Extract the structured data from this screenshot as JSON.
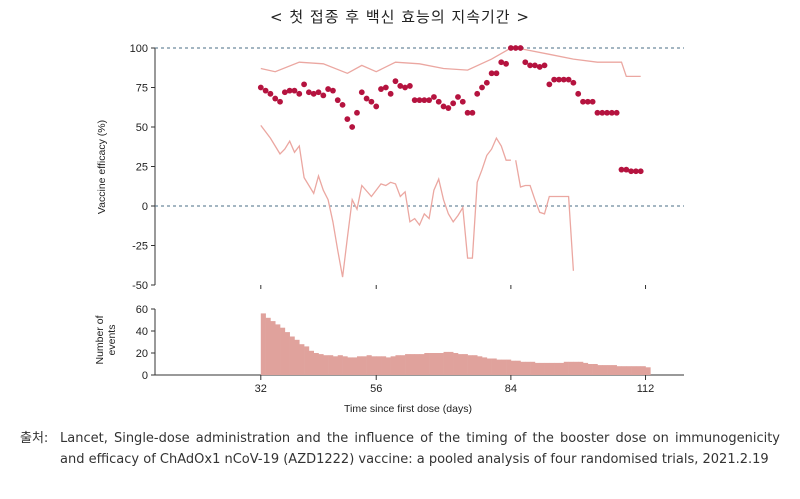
{
  "title": "< 첫 접종 후 백신 효능의 지속기간 >",
  "source": {
    "label": "출처:",
    "text": "Lancet, Single-dose administration and the influence of the timing of the booster dose on immunogenicity and efficacy of ChAdOx1 nCoV-19 (AZD1222) vaccine: a pooled analysis of four randomised trials, 2021.2.19"
  },
  "chart_data": [
    {
      "type": "scatter",
      "ylabel": "Vaccine efficacy (%)",
      "xlim": [
        10,
        120
      ],
      "ylim": [
        -50,
        100
      ],
      "yticks": [
        100,
        75,
        50,
        25,
        0,
        -25,
        -50
      ],
      "reference_lines": [
        100,
        0
      ],
      "grid": false,
      "series": [
        {
          "points": [
            [
              32,
              75
            ],
            [
              33,
              73
            ],
            [
              34,
              71
            ],
            [
              35,
              68
            ],
            [
              36,
              66
            ],
            [
              37,
              72
            ],
            [
              38,
              73
            ],
            [
              39,
              73
            ],
            [
              40,
              71
            ],
            [
              41,
              77
            ],
            [
              42,
              72
            ],
            [
              43,
              71
            ],
            [
              44,
              72
            ],
            [
              45,
              70
            ],
            [
              46,
              74
            ],
            [
              47,
              73
            ],
            [
              48,
              67
            ],
            [
              49,
              64
            ],
            [
              50,
              55
            ],
            [
              51,
              50
            ],
            [
              52,
              59
            ],
            [
              53,
              72
            ],
            [
              54,
              68
            ],
            [
              55,
              66
            ],
            [
              56,
              63
            ],
            [
              57,
              74
            ],
            [
              58,
              75
            ],
            [
              59,
              71
            ],
            [
              60,
              79
            ],
            [
              61,
              76
            ],
            [
              62,
              75
            ],
            [
              63,
              76
            ],
            [
              64,
              67
            ],
            [
              65,
              67
            ],
            [
              66,
              67
            ],
            [
              67,
              67
            ],
            [
              68,
              69
            ],
            [
              69,
              66
            ],
            [
              70,
              63
            ],
            [
              71,
              62
            ],
            [
              72,
              65
            ],
            [
              73,
              69
            ],
            [
              74,
              66
            ],
            [
              75,
              59
            ],
            [
              76,
              59
            ],
            [
              77,
              71
            ],
            [
              78,
              75
            ],
            [
              79,
              78
            ],
            [
              80,
              84
            ],
            [
              81,
              84
            ],
            [
              82,
              91
            ],
            [
              83,
              90
            ],
            [
              84,
              100
            ],
            [
              85,
              100
            ],
            [
              86,
              100
            ],
            [
              87,
              91
            ],
            [
              88,
              89
            ],
            [
              89,
              89
            ],
            [
              90,
              88
            ],
            [
              91,
              89
            ],
            [
              92,
              77
            ],
            [
              93,
              80
            ],
            [
              94,
              80
            ],
            [
              95,
              80
            ],
            [
              96,
              80
            ],
            [
              97,
              78
            ],
            [
              98,
              71
            ],
            [
              99,
              66
            ],
            [
              100,
              66
            ],
            [
              101,
              66
            ],
            [
              102,
              59
            ],
            [
              103,
              59
            ],
            [
              104,
              59
            ],
            [
              105,
              59
            ],
            [
              106,
              59
            ],
            [
              107,
              23
            ],
            [
              108,
              23
            ],
            [
              109,
              22
            ],
            [
              110,
              22
            ],
            [
              111,
              22
            ]
          ]
        },
        {
          "name": "upper CI",
          "points": [
            [
              32,
              87
            ],
            [
              35,
              85
            ],
            [
              40,
              91
            ],
            [
              45,
              90
            ],
            [
              50,
              84
            ],
            [
              53,
              89
            ],
            [
              56,
              85
            ],
            [
              60,
              91
            ],
            [
              65,
              90
            ],
            [
              70,
              87
            ],
            [
              75,
              86
            ],
            [
              80,
              93
            ],
            [
              84,
              100
            ],
            [
              87,
              99
            ],
            [
              92,
              96
            ],
            [
              97,
              93
            ],
            [
              102,
              91
            ],
            [
              107,
              91
            ],
            [
              108,
              82
            ],
            [
              111,
              82
            ]
          ]
        },
        {
          "name": "lower CI",
          "points": [
            [
              32,
              51
            ],
            [
              34,
              43
            ],
            [
              36,
              33
            ],
            [
              37,
              36
            ],
            [
              38,
              41
            ],
            [
              39,
              34
            ],
            [
              40,
              38
            ],
            [
              41,
              18
            ],
            [
              43,
              8
            ],
            [
              44,
              19
            ],
            [
              45,
              10
            ],
            [
              46,
              4
            ],
            [
              47,
              -10
            ],
            [
              48,
              -28
            ],
            [
              49,
              -45
            ],
            [
              50,
              -20
            ],
            [
              51,
              4
            ],
            [
              52,
              -2
            ],
            [
              53,
              13
            ],
            [
              55,
              6
            ],
            [
              57,
              14
            ],
            [
              58,
              13
            ],
            [
              59,
              15
            ],
            [
              60,
              14
            ],
            [
              61,
              6
            ],
            [
              62,
              9
            ],
            [
              63,
              -10
            ],
            [
              64,
              -8
            ],
            [
              65,
              -12
            ],
            [
              66,
              -5
            ],
            [
              67,
              -8
            ],
            [
              68,
              10
            ],
            [
              69,
              17
            ],
            [
              70,
              4
            ],
            [
              71,
              -5
            ],
            [
              72,
              -10
            ],
            [
              73,
              -6
            ],
            [
              74,
              -1
            ],
            [
              75,
              -33
            ],
            [
              76,
              -33
            ],
            [
              77,
              15
            ],
            [
              78,
              23
            ],
            [
              79,
              32
            ],
            [
              80,
              36
            ],
            [
              81,
              43
            ],
            [
              82,
              38
            ],
            [
              83,
              29
            ],
            [
              84,
              29
            ],
            null,
            [
              85,
              29
            ],
            [
              86,
              12
            ],
            [
              87,
              13
            ],
            [
              88,
              13
            ],
            [
              89,
              4
            ],
            [
              90,
              -4
            ],
            [
              91,
              -5
            ],
            [
              92,
              6
            ],
            [
              93,
              6
            ],
            [
              94,
              6
            ],
            [
              95,
              6
            ],
            [
              96,
              6
            ],
            [
              97,
              -41
            ]
          ]
        }
      ]
    },
    {
      "type": "bar",
      "ylabel": "Number of events",
      "xlabel": "Time since first dose (days)",
      "xticks": [
        32,
        56,
        84,
        112
      ],
      "xlim": [
        10,
        120
      ],
      "ylim": [
        0,
        60
      ],
      "yticks": [
        60,
        40,
        20,
        0
      ],
      "categories": [
        32,
        33,
        34,
        35,
        36,
        37,
        38,
        39,
        40,
        41,
        42,
        43,
        44,
        45,
        46,
        47,
        48,
        49,
        50,
        51,
        52,
        53,
        54,
        55,
        56,
        57,
        58,
        59,
        60,
        61,
        62,
        63,
        64,
        65,
        66,
        67,
        68,
        69,
        70,
        71,
        72,
        73,
        74,
        75,
        76,
        77,
        78,
        79,
        80,
        81,
        82,
        83,
        84,
        85,
        86,
        87,
        88,
        89,
        90,
        91,
        92,
        93,
        94,
        95,
        96,
        97,
        98,
        99,
        100,
        101,
        102,
        103,
        104,
        105,
        106,
        107,
        108,
        109,
        110,
        111,
        112
      ],
      "values": [
        56,
        52,
        49,
        46,
        43,
        39,
        35,
        32,
        28,
        26,
        22,
        20,
        19,
        18,
        18,
        17,
        18,
        17,
        16,
        16,
        17,
        17,
        18,
        17,
        17,
        17,
        16,
        17,
        18,
        18,
        19,
        19,
        19,
        19,
        20,
        20,
        20,
        20,
        21,
        21,
        20,
        19,
        19,
        18,
        18,
        17,
        16,
        15,
        15,
        14,
        14,
        14,
        13,
        13,
        12,
        12,
        12,
        11,
        11,
        11,
        11,
        11,
        11,
        12,
        12,
        12,
        12,
        11,
        10,
        10,
        9,
        9,
        9,
        9,
        8,
        8,
        8,
        8,
        8,
        8,
        7
      ]
    }
  ]
}
